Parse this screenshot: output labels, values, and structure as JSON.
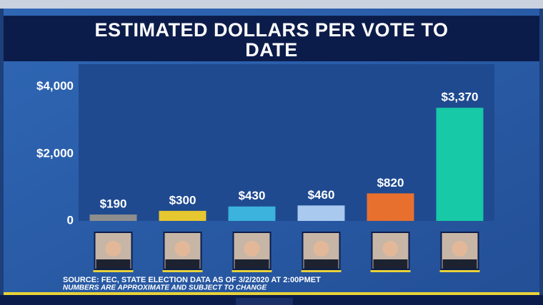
{
  "chart_data": {
    "type": "bar",
    "title": "ESTIMATED DOLLARS PER VOTE TO DATE",
    "categories": [
      null,
      null,
      null,
      null,
      null,
      null
    ],
    "series": [
      {
        "values": [
          190,
          300,
          430,
          460,
          820,
          3370
        ],
        "value_labels": [
          "$190",
          "$300",
          "$430",
          "$460",
          "$820",
          "$3,370"
        ],
        "colors": [
          "#8e8e8e",
          "#e6c730",
          "#3bb3dc",
          "#a9c9ee",
          "#e8702f",
          "#17c9a6"
        ]
      }
    ],
    "ylim": [
      0,
      4500
    ],
    "yticks": [
      0,
      {
        "value": 2000,
        "label": "$2,000"
      },
      {
        "value": 4000,
        "label": "$4,000"
      }
    ],
    "grid": false,
    "source": "SOURCE: FEC, STATE ELECTION DATA AS OF 3/2/2020 AT 2:00PMET",
    "note": "NUMBERS ARE APPROXIMATE AND SUBJECT TO CHANGE"
  }
}
